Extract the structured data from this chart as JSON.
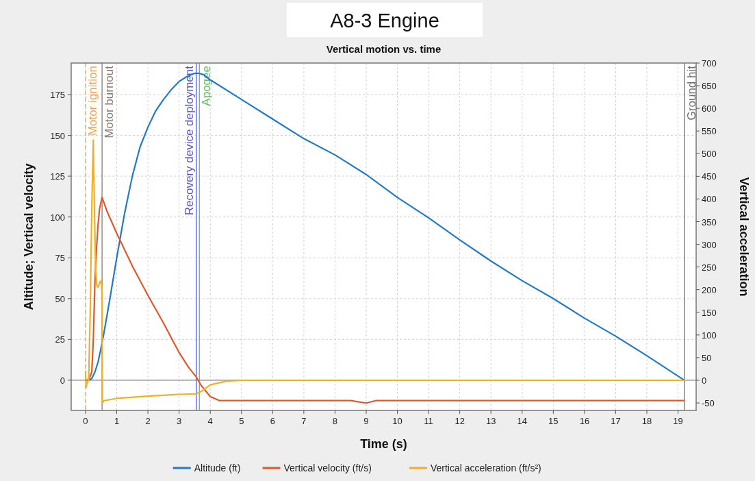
{
  "chart_data": {
    "type": "line",
    "title": "A8-3 Engine",
    "subtitle": "Vertical motion vs. time",
    "xlabel": "Time (s)",
    "ylabel": "Altitude; Vertical velocity",
    "y2label": "Vertical acceleration",
    "xlim": [
      -0.46,
      19.58
    ],
    "xticks": [
      0,
      1,
      2,
      3,
      4,
      5,
      6,
      7,
      8,
      9,
      10,
      11,
      12,
      13,
      14,
      15,
      16,
      17,
      18,
      19
    ],
    "ylim": [
      -18.5,
      194.3
    ],
    "yticks": [
      0,
      25,
      50,
      75,
      100,
      125,
      150,
      175
    ],
    "y2lim": [
      -66.5,
      700
    ],
    "y2ticks": [
      -50,
      0,
      50,
      100,
      150,
      200,
      250,
      300,
      350,
      400,
      450,
      500,
      550,
      600,
      650,
      700
    ],
    "grid": true,
    "legend": "bottom",
    "marker": "none",
    "line_style": "solid",
    "series": [
      {
        "name": "Altitude (ft)",
        "color": "#1f7ac8",
        "x": [
          0,
          0.1,
          0.2,
          0.3,
          0.4,
          0.5,
          0.6,
          0.8,
          1,
          1.25,
          1.5,
          1.75,
          2,
          2.25,
          2.5,
          2.75,
          3,
          3.25,
          3.5,
          3.65,
          3.8,
          4,
          5,
          6,
          7,
          8,
          9,
          10,
          11,
          12,
          13,
          14,
          15,
          16,
          17,
          18,
          19.2
        ],
        "values": [
          0,
          0,
          1,
          5,
          11,
          20,
          30,
          52,
          75,
          102,
          125,
          143,
          155,
          165,
          172,
          178,
          183,
          186,
          188,
          188,
          187,
          184,
          172,
          160,
          148,
          138,
          126,
          112,
          99.5,
          86,
          73,
          61,
          50,
          38,
          27,
          15,
          0
        ]
      },
      {
        "name": "Vertical velocity (ft/s)",
        "color": "#e0582a",
        "x": [
          0,
          0.1,
          0.2,
          0.25,
          0.3,
          0.35,
          0.4,
          0.45,
          0.53,
          0.7,
          1,
          1.5,
          2,
          2.5,
          3,
          3.3,
          3.55,
          3.7,
          4,
          4.3,
          5,
          8.5,
          9,
          9.3,
          19.2
        ],
        "values": [
          0,
          0,
          5,
          25,
          60,
          80,
          95,
          105,
          112,
          103,
          90,
          70,
          52,
          35,
          17,
          8,
          2,
          -3,
          -10,
          -12.5,
          -12.5,
          -12.5,
          -14,
          -12.5,
          -12.5
        ]
      },
      {
        "name": "Vertical acceleration (ft/s²)",
        "color": "#f0b020",
        "axis": "y2",
        "x": [
          0,
          0.02,
          0.05,
          0.1,
          0.15,
          0.2,
          0.25,
          0.28,
          0.32,
          0.36,
          0.4,
          0.45,
          0.5,
          0.53,
          0.54,
          0.6,
          1,
          2,
          3,
          3.55,
          3.7,
          4,
          4.5,
          5,
          19.2
        ],
        "values": [
          20,
          -15,
          -5,
          0,
          150,
          380,
          530,
          400,
          250,
          210,
          205,
          215,
          220,
          190,
          -50,
          -45,
          -40,
          -35,
          -31,
          -30,
          -25,
          -10,
          -2,
          0,
          0
        ]
      }
    ],
    "ref_lines": [
      {
        "axis": "x",
        "value": 0,
        "label": "Motor ignition",
        "color": "#f0a050",
        "line_style": "dashed"
      },
      {
        "axis": "x",
        "value": 0.53,
        "label": "Motor burnout",
        "color": "#8c7a70",
        "line_style": "solid"
      },
      {
        "axis": "x",
        "value": 3.55,
        "label": "Recovery device deployment",
        "color": "#5555c8",
        "line_style": "solid"
      },
      {
        "axis": "x",
        "value": 3.65,
        "label": "Apogee",
        "color": "#5cb85c",
        "line_style": "solid"
      },
      {
        "axis": "x",
        "value": 19.2,
        "label": "Ground hit",
        "color": "#707070",
        "line_style": "solid"
      },
      {
        "axis": "y",
        "value": 0,
        "color": "#888888",
        "line_style": "solid"
      }
    ]
  }
}
